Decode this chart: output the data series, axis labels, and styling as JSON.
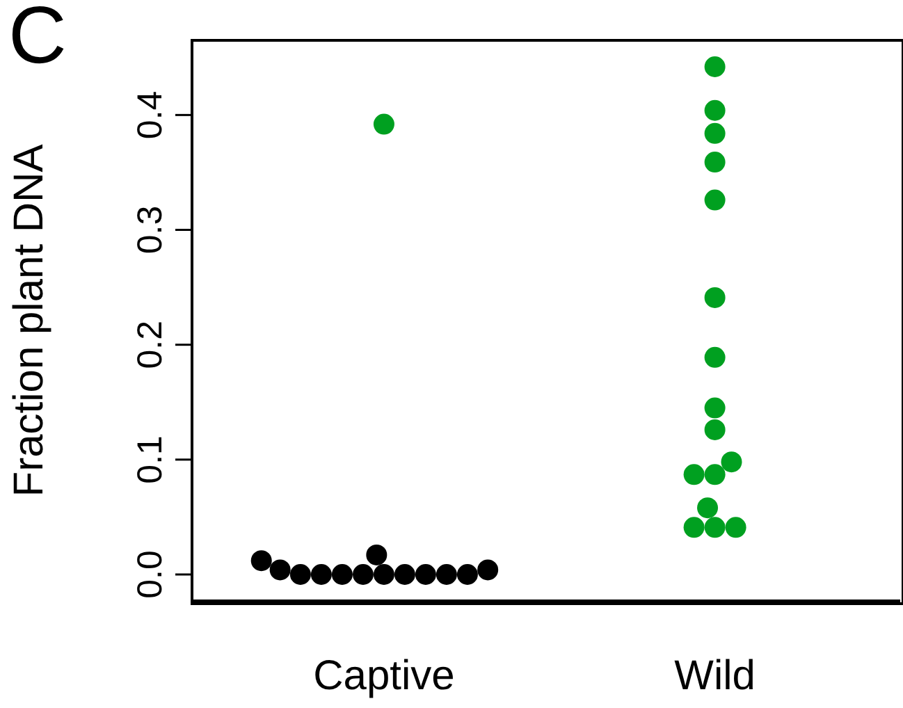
{
  "chart_data": {
    "type": "scatter",
    "title": "C",
    "ylabel": "Fraction plant DNA",
    "categories": [
      "Captive",
      "Wild"
    ],
    "ylim": [
      -0.023,
      0.465
    ],
    "yticks": [
      {
        "value": 0,
        "label": "0.0"
      },
      {
        "value": 0.1,
        "label": "0.1"
      },
      {
        "value": 0.2,
        "label": "0.2"
      },
      {
        "value": 0.3,
        "label": "0.3"
      },
      {
        "value": 0.4,
        "label": "0.4"
      }
    ],
    "grid": false,
    "legend": false,
    "marker": "circle",
    "series": [
      {
        "color": "#000000",
        "x": [
          "Captive",
          "Captive",
          "Captive",
          "Captive",
          "Captive",
          "Captive",
          "Captive",
          "Captive",
          "Captive",
          "Captive",
          "Captive",
          "Captive",
          "Captive"
        ],
        "values": [
          0.004,
          0,
          0,
          0,
          0,
          0,
          0.017,
          0,
          0,
          0,
          0,
          0.004,
          0.012
        ]
      },
      {
        "color": "#00a020",
        "x": [
          "Captive",
          "Wild",
          "Wild",
          "Wild",
          "Wild",
          "Wild",
          "Wild",
          "Wild",
          "Wild",
          "Wild",
          "Wild",
          "Wild",
          "Wild",
          "Wild",
          "Wild",
          "Wild",
          "Wild"
        ],
        "values": [
          0.392,
          0.442,
          0.404,
          0.384,
          0.359,
          0.326,
          0.241,
          0.189,
          0.145,
          0.126,
          0.098,
          0.087,
          0.087,
          0.058,
          0.041,
          0.041,
          0.041
        ]
      }
    ]
  }
}
